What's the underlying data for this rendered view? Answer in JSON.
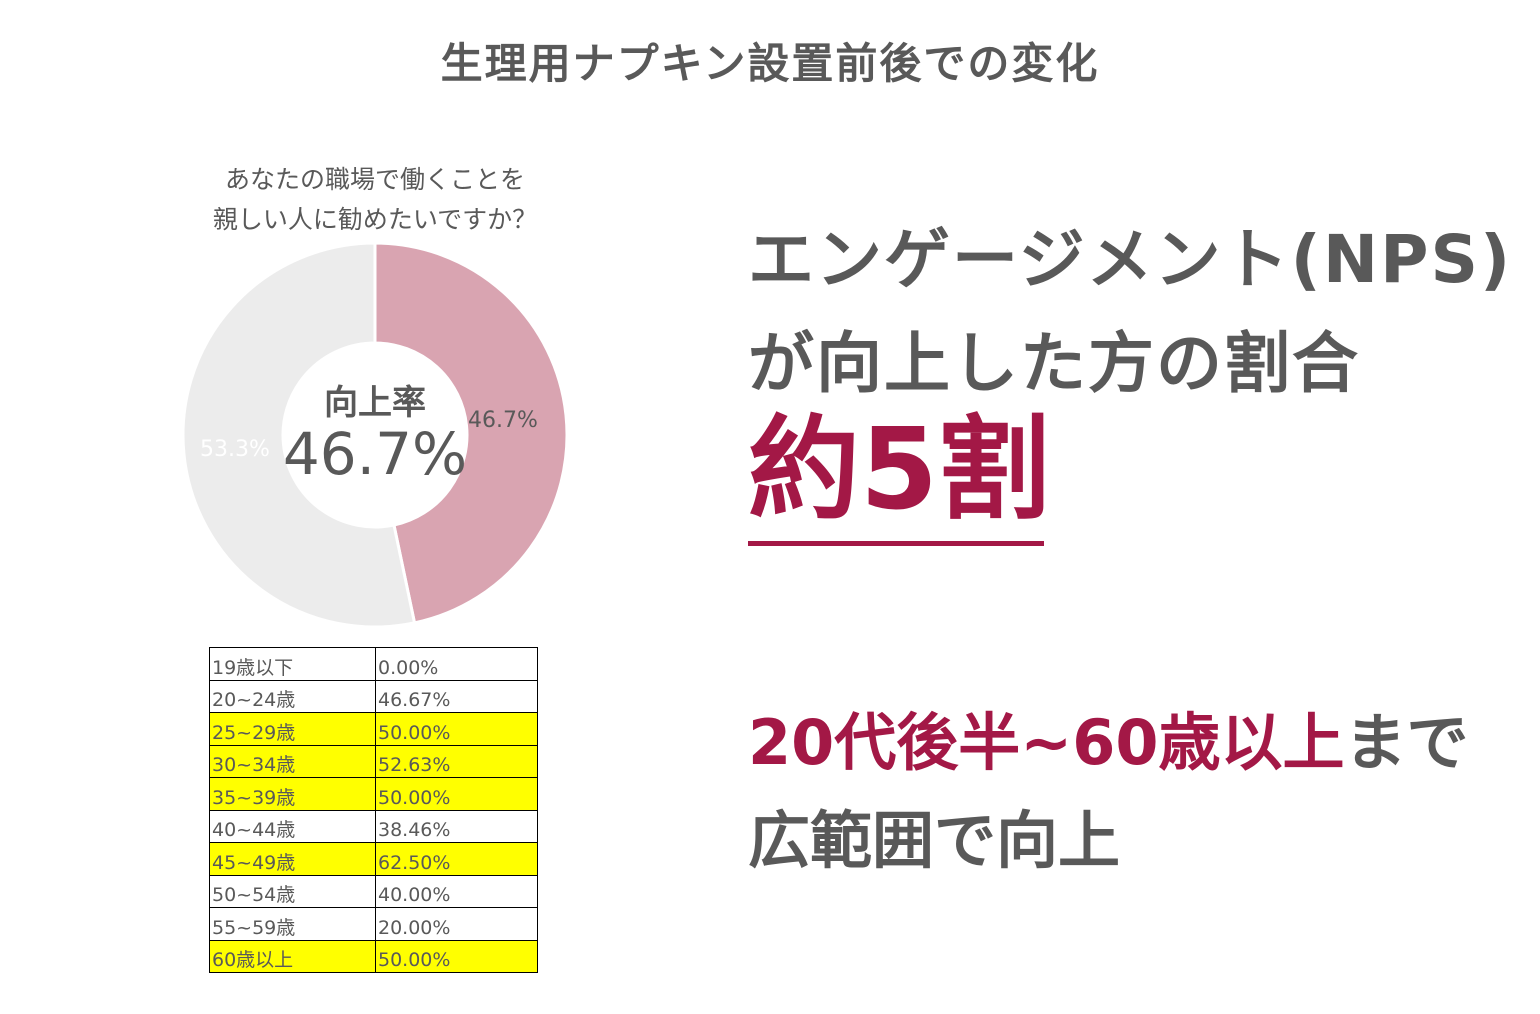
{
  "page_title": "生理用ナプキン設置前後での変化",
  "question": {
    "line1": "あなたの職場で働くことを",
    "line2": "親しい人に勧めたいですか？"
  },
  "donut_center": {
    "label": "向上率",
    "value": "46.7%"
  },
  "colors": {
    "improved": "#d9a4b1",
    "other": "#ececec",
    "accent": "#a31846",
    "highlight": "#ffff00"
  },
  "chart_data": {
    "type": "pie",
    "donut": true,
    "slices": [
      {
        "value": 46.7,
        "label": "46.7%",
        "color": "#d9a4b1"
      },
      {
        "value": 53.3,
        "label": "53.3%",
        "color": "#ececec"
      }
    ],
    "title": "",
    "table": {
      "rows": [
        {
          "age": "19歳以下",
          "rate": "0.00%",
          "highlight": false
        },
        {
          "age": "20~24歳",
          "rate": "46.67%",
          "highlight": false
        },
        {
          "age": "25~29歳",
          "rate": "50.00%",
          "highlight": true
        },
        {
          "age": "30~34歳",
          "rate": "52.63%",
          "highlight": true
        },
        {
          "age": "35~39歳",
          "rate": "50.00%",
          "highlight": true
        },
        {
          "age": "40~44歳",
          "rate": "38.46%",
          "highlight": false
        },
        {
          "age": "45~49歳",
          "rate": "62.50%",
          "highlight": true
        },
        {
          "age": "50~54歳",
          "rate": "40.00%",
          "highlight": false
        },
        {
          "age": "55~59歳",
          "rate": "20.00%",
          "highlight": false
        },
        {
          "age": "60歳以上",
          "rate": "50.00%",
          "highlight": true
        }
      ]
    }
  },
  "headline": {
    "line1": "エンゲージメント(NPS)",
    "line2": "が向上した方の割合"
  },
  "big_value": "約5割",
  "subline": {
    "emphasis": "20代後半~60歳以上",
    "rest": "まで",
    "line2": "広範囲で向上"
  }
}
